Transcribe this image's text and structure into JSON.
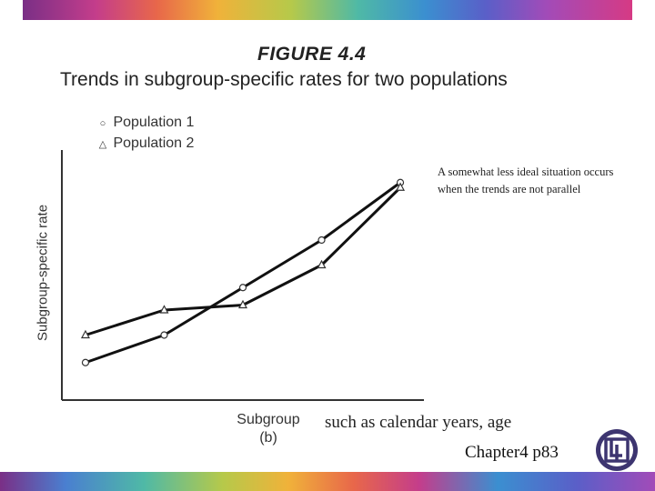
{
  "figure_label": "FIGURE 4.4",
  "chart_data": {
    "type": "line",
    "title": "Trends in subgroup-specific rates for two populations",
    "xlabel": "Subgroup",
    "xlabel_sub": "(b)",
    "ylabel": "Subgroup-specific rate",
    "x": [
      1,
      2,
      3,
      4,
      5
    ],
    "xlim": [
      0.7,
      5.3
    ],
    "ylim": [
      0,
      100
    ],
    "series": [
      {
        "name": "Population 1",
        "marker": "o",
        "values": [
          15,
          26,
          45,
          64,
          87
        ]
      },
      {
        "name": "Population 2",
        "marker": "△",
        "values": [
          26,
          36,
          38,
          54,
          85
        ]
      }
    ],
    "legend_position": "top-left"
  },
  "annotation": "A somewhat less ideal situation occurs when the trends are not parallel",
  "note": "such as calendar years, age",
  "chapter": "Chapter4 p83",
  "colors": {
    "line": "#111111",
    "axis": "#333333"
  }
}
